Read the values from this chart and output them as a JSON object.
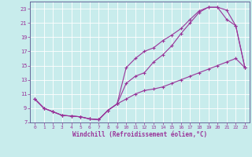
{
  "xlabel": "Windchill (Refroidissement éolien,°C)",
  "bg_color": "#c8ecec",
  "grid_color": "#aacccc",
  "line_color": "#993399",
  "spine_color": "#666699",
  "xlim": [
    -0.5,
    23.5
  ],
  "ylim": [
    7,
    24
  ],
  "xticks": [
    0,
    1,
    2,
    3,
    4,
    5,
    6,
    7,
    8,
    9,
    10,
    11,
    12,
    13,
    14,
    15,
    16,
    17,
    18,
    19,
    20,
    21,
    22,
    23
  ],
  "yticks": [
    7,
    9,
    11,
    13,
    15,
    17,
    19,
    21,
    23
  ],
  "line1_x": [
    0,
    1,
    2,
    3,
    4,
    5,
    6,
    7,
    8,
    9,
    10,
    11,
    12,
    13,
    14,
    15,
    16,
    17,
    18,
    19,
    20,
    21,
    22,
    23
  ],
  "line1_y": [
    10.3,
    9.0,
    8.5,
    8.0,
    7.9,
    7.8,
    7.5,
    7.4,
    8.7,
    9.6,
    10.3,
    11.0,
    11.5,
    11.7,
    12.0,
    12.5,
    13.0,
    13.5,
    14.0,
    14.5,
    15.0,
    15.5,
    16.0,
    14.7
  ],
  "line2_x": [
    0,
    1,
    2,
    3,
    4,
    5,
    6,
    7,
    8,
    9,
    10,
    11,
    12,
    13,
    14,
    15,
    16,
    17,
    18,
    19,
    20,
    21,
    22,
    23
  ],
  "line2_y": [
    10.3,
    9.0,
    8.5,
    8.0,
    7.9,
    7.8,
    7.5,
    7.4,
    8.7,
    9.6,
    14.7,
    16.0,
    17.0,
    17.5,
    18.5,
    19.3,
    20.2,
    21.5,
    22.7,
    23.2,
    23.2,
    22.8,
    20.6,
    14.7
  ],
  "line3_x": [
    0,
    1,
    2,
    3,
    4,
    5,
    6,
    7,
    8,
    9,
    10,
    11,
    12,
    13,
    14,
    15,
    16,
    17,
    18,
    19,
    20,
    21,
    22,
    23
  ],
  "line3_y": [
    10.3,
    9.0,
    8.5,
    8.0,
    7.9,
    7.8,
    7.5,
    7.4,
    8.7,
    9.6,
    12.5,
    13.5,
    14.0,
    15.5,
    16.5,
    17.8,
    19.5,
    21.0,
    22.5,
    23.2,
    23.2,
    21.5,
    20.6,
    14.7
  ]
}
